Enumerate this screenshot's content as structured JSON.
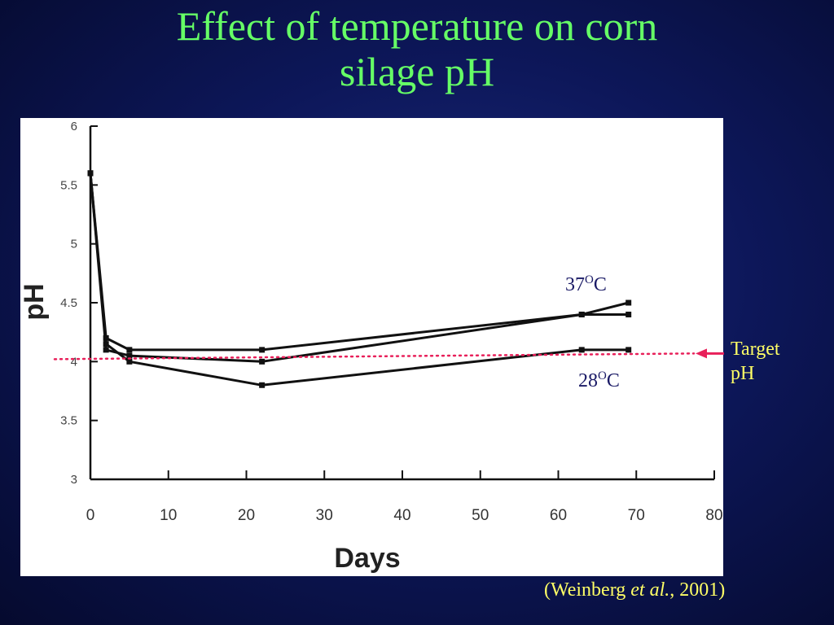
{
  "slide": {
    "title_line1": "Effect of temperature on corn",
    "title_line2": "silage pH",
    "label_high": "37",
    "label_high_sup": "O",
    "label_high_unit": "C",
    "label_low": "28",
    "label_low_sup": "O",
    "label_low_unit": "C",
    "target_line1": "Target",
    "target_line2": "pH",
    "citation_prefix": "(Weinberg ",
    "citation_etal": "et al.",
    "citation_suffix": ", 2001)"
  },
  "chart_data": {
    "type": "line",
    "xlabel": "Days",
    "ylabel": "pH",
    "xlim": [
      0,
      80
    ],
    "ylim": [
      3,
      6
    ],
    "x_ticks": [
      "0",
      "10",
      "20",
      "30",
      "40",
      "50",
      "60",
      "70",
      "80"
    ],
    "y_ticks": [
      "3",
      "3.5",
      "4",
      "4.5",
      "5",
      "5.5",
      "6"
    ],
    "series": [
      {
        "x": [
          0,
          2,
          5,
          22,
          63,
          69
        ],
        "y": [
          5.6,
          4.2,
          4.1,
          4.1,
          4.4,
          4.5
        ]
      },
      {
        "x": [
          0,
          2,
          5,
          22,
          63,
          69
        ],
        "y": [
          5.6,
          4.1,
          4.05,
          4.0,
          4.4,
          4.4
        ]
      },
      {
        "x": [
          0,
          2,
          5,
          22,
          63,
          69
        ],
        "y": [
          5.6,
          4.15,
          4.0,
          3.8,
          4.1,
          4.1
        ]
      }
    ],
    "target_ph": 4.0,
    "target_color": "#e8205a",
    "line_color": "#111111"
  }
}
